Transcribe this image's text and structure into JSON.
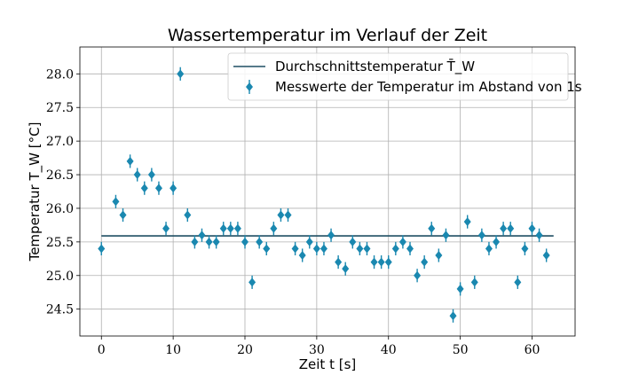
{
  "chart_data": {
    "type": "scatter",
    "title": "Wassertemperatur im Verlauf der Zeit",
    "xlabel": "Zeit t [s]",
    "ylabel": "Temperatur T_W [°C]",
    "xlim": [
      -3,
      66
    ],
    "ylim": [
      24.1,
      28.4
    ],
    "xticks": [
      0,
      10,
      20,
      30,
      40,
      50,
      60
    ],
    "xtick_labels": [
      "0",
      "10",
      "20",
      "30",
      "40",
      "50",
      "60"
    ],
    "yticks": [
      24.5,
      25.0,
      25.5,
      26.0,
      26.5,
      27.0,
      27.5,
      28.0
    ],
    "ytick_labels": [
      "24.5",
      "25.0",
      "25.5",
      "26.0",
      "26.5",
      "27.0",
      "27.5",
      "28.0"
    ],
    "grid": true,
    "legend_position": "top-right",
    "colors": {
      "points": "#1a88b0",
      "mean_line": "#1f4e63"
    },
    "y_error": 0.1,
    "series": [
      {
        "name": "Messwerte der Temperatur im Abstand von 1s",
        "kind": "errorbar",
        "x": [
          0,
          2,
          3,
          4,
          5,
          6,
          7,
          8,
          9,
          10,
          11,
          12,
          13,
          14,
          15,
          16,
          17,
          18,
          19,
          20,
          21,
          22,
          23,
          24,
          25,
          26,
          27,
          28,
          29,
          30,
          31,
          32,
          33,
          34,
          35,
          36,
          37,
          38,
          39,
          40,
          41,
          42,
          43,
          44,
          45,
          46,
          47,
          48,
          49,
          50,
          51,
          52,
          53,
          54,
          55,
          56,
          57,
          58,
          59,
          60,
          61,
          62
        ],
        "y": [
          25.4,
          26.1,
          25.9,
          26.7,
          26.5,
          26.3,
          26.5,
          26.3,
          25.7,
          26.3,
          28.0,
          25.9,
          25.5,
          25.6,
          25.5,
          25.5,
          25.7,
          25.7,
          25.7,
          25.5,
          24.9,
          25.5,
          25.4,
          25.7,
          25.9,
          25.9,
          25.4,
          25.3,
          25.5,
          25.4,
          25.4,
          25.6,
          25.2,
          25.1,
          25.5,
          25.4,
          25.4,
          25.2,
          25.2,
          25.2,
          25.4,
          25.5,
          25.4,
          25.0,
          25.2,
          25.7,
          25.3,
          25.6,
          24.4,
          24.8,
          25.8,
          24.9,
          25.6,
          25.4,
          25.5,
          25.7,
          25.7,
          24.9,
          25.4,
          25.7,
          25.6,
          25.3
        ]
      },
      {
        "name": "Durchschnittstemperatur T̄_W",
        "kind": "line",
        "x": [
          0,
          63
        ],
        "y": [
          25.59,
          25.59
        ]
      }
    ]
  }
}
